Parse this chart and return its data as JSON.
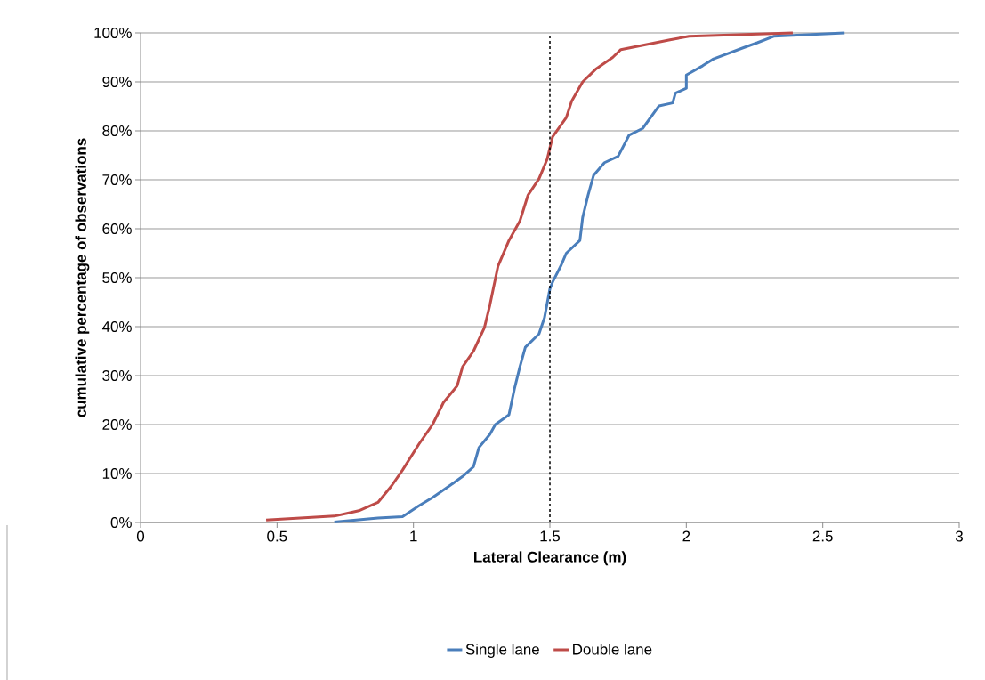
{
  "chart_data": {
    "type": "line",
    "xlabel": "Lateral Clearance (m)",
    "ylabel": "cumulative percentage of observations",
    "xlim": [
      0,
      3
    ],
    "xticks": [
      0,
      0.5,
      1,
      1.5,
      2,
      2.5,
      3
    ],
    "ylim": [
      0,
      100
    ],
    "yticks": [
      {
        "value": 0,
        "label": "0%"
      },
      {
        "value": 10,
        "label": "10%"
      },
      {
        "value": 20,
        "label": "20%"
      },
      {
        "value": 30,
        "label": "30%"
      },
      {
        "value": 40,
        "label": "40%"
      },
      {
        "value": 50,
        "label": "50%"
      },
      {
        "value": 60,
        "label": "60%"
      },
      {
        "value": 70,
        "label": "70%"
      },
      {
        "value": 80,
        "label": "80%"
      },
      {
        "value": 90,
        "label": "90%"
      },
      {
        "value": 100,
        "label": "100%"
      }
    ],
    "grid": "y",
    "legend": "bottom",
    "marker": "none",
    "ref_lines": [
      {
        "axis": "x",
        "value": 1.5,
        "color": "#000000",
        "line_style": "dashed"
      }
    ],
    "series": [
      {
        "name": "Single lane",
        "color": "#4a7ebb",
        "x": [
          0.71,
          0.87,
          0.96,
          1.02,
          1.07,
          1.13,
          1.18,
          1.22,
          1.24,
          1.28,
          1.3,
          1.35,
          1.37,
          1.39,
          1.41,
          1.46,
          1.48,
          1.5,
          1.51,
          1.54,
          1.56,
          1.61,
          1.62,
          1.64,
          1.66,
          1.7,
          1.75,
          1.79,
          1.84,
          1.9,
          1.95,
          1.96,
          2.0,
          2.0,
          2.06,
          2.1,
          2.21,
          2.26,
          2.32,
          2.58
        ],
        "values": [
          0.1,
          0.9,
          1.2,
          3.4,
          5.1,
          7.4,
          9.4,
          11.4,
          15.3,
          18,
          20,
          22,
          27.3,
          31.8,
          35.8,
          38.5,
          41.8,
          47.7,
          49.1,
          52.4,
          55,
          57.6,
          62.3,
          66.9,
          70.9,
          73.5,
          74.8,
          79.1,
          80.5,
          85.1,
          85.7,
          87.7,
          88.7,
          91.4,
          93.3,
          94.7,
          97,
          98,
          99.3,
          100
        ]
      },
      {
        "name": "Double lane",
        "color": "#be4b48",
        "x": [
          0.46,
          0.71,
          0.76,
          0.8,
          0.87,
          0.92,
          0.96,
          1.02,
          1.07,
          1.11,
          1.16,
          1.18,
          1.22,
          1.26,
          1.28,
          1.31,
          1.35,
          1.39,
          1.42,
          1.46,
          1.49,
          1.51,
          1.56,
          1.58,
          1.62,
          1.67,
          1.73,
          1.76,
          1.94,
          2.01,
          2.39
        ],
        "values": [
          0.5,
          1.3,
          1.9,
          2.4,
          4.1,
          7.5,
          10.7,
          16,
          20,
          24.5,
          27.9,
          31.8,
          35,
          39.8,
          44.4,
          52.4,
          57.6,
          61.6,
          66.9,
          70.2,
          74.2,
          78.8,
          82.7,
          86.1,
          90,
          92.7,
          95,
          96.6,
          98.6,
          99.3,
          100
        ]
      }
    ]
  }
}
